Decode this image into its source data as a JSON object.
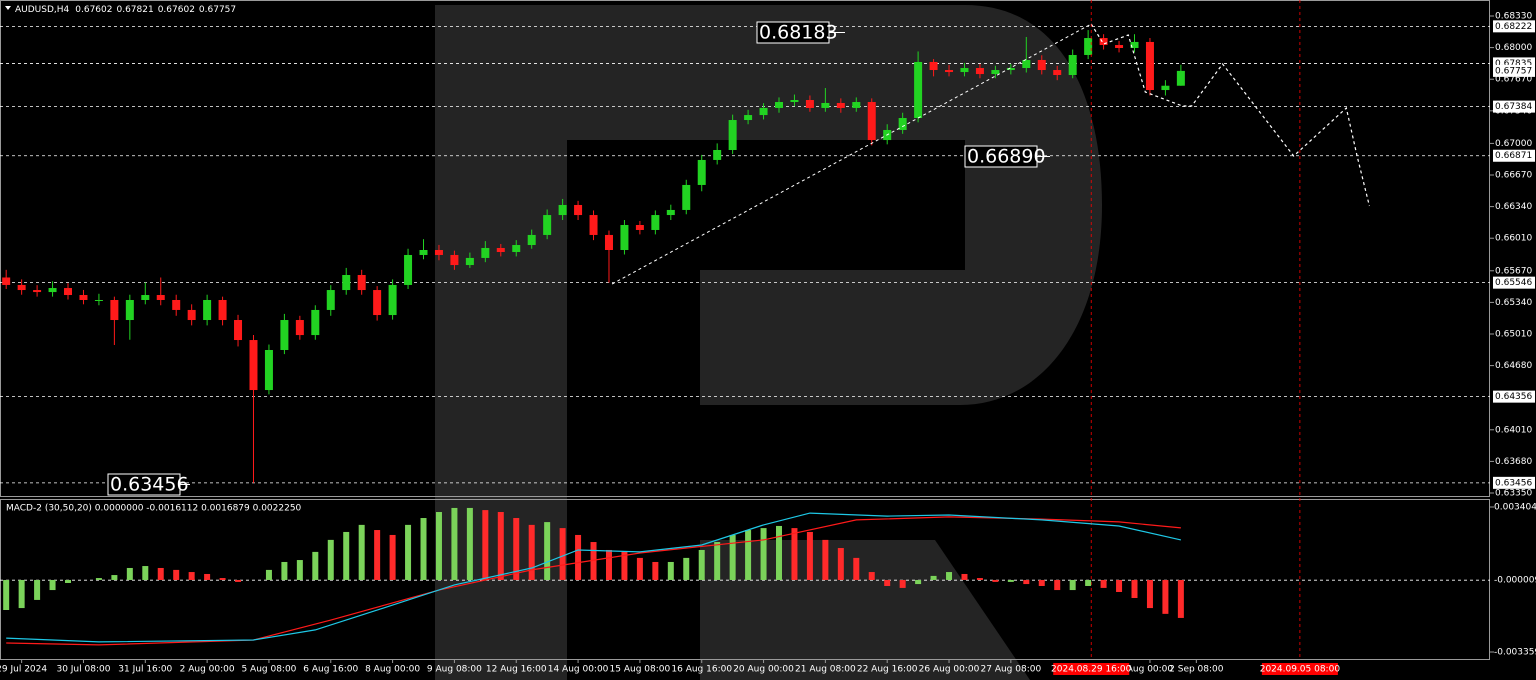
{
  "chart_data": [
    {
      "type": "candlestick",
      "title": "AUDUSD,H4",
      "open": [
        0.656,
        0.65522,
        0.65469,
        0.65448,
        0.6549,
        0.65417,
        0.65365,
        0.65365,
        0.65156,
        0.65365,
        0.65417,
        0.65365,
        0.65261,
        0.65156,
        0.65365,
        0.65156,
        0.64947,
        0.64425,
        0.64843,
        0.65156,
        0.64999,
        0.65261,
        0.65469,
        0.65626,
        0.65469,
        0.65208,
        0.65522,
        0.65835,
        0.65887,
        0.65835,
        0.6573,
        0.65804,
        0.65908,
        0.65866,
        0.65939,
        0.66044,
        0.66252,
        0.66357,
        0.66252,
        0.66044,
        0.65887,
        0.66148,
        0.66096,
        0.66252,
        0.66305,
        0.66566,
        0.66827,
        0.66931,
        0.67244,
        0.67296,
        0.6737,
        0.67432,
        0.67453,
        0.6737,
        0.67422,
        0.6737,
        0.67432,
        0.67035,
        0.6714,
        0.67265,
        0.6785,
        0.67766,
        0.67745,
        0.67787,
        0.67724,
        0.67766,
        0.67787,
        0.67871,
        0.67766,
        0.67714,
        0.67923,
        0.681,
        0.68027,
        0.67996,
        0.68059,
        0.67557,
        0.67602
      ],
      "high": [
        0.6568,
        0.6558,
        0.6552,
        0.6556,
        0.6554,
        0.6547,
        0.6543,
        0.654,
        0.6542,
        0.65546,
        0.656,
        0.6542,
        0.6532,
        0.6542,
        0.654,
        0.6521,
        0.65,
        0.649,
        0.6522,
        0.652,
        0.6531,
        0.6552,
        0.657,
        0.6568,
        0.6551,
        0.6558,
        0.659,
        0.66,
        0.6594,
        0.6588,
        0.6586,
        0.6598,
        0.6595,
        0.6599,
        0.661,
        0.6631,
        0.6642,
        0.664,
        0.663,
        0.6609,
        0.662,
        0.6619,
        0.663,
        0.6636,
        0.6662,
        0.6688,
        0.67,
        0.673,
        0.6735,
        0.6742,
        0.6748,
        0.6751,
        0.675,
        0.67578,
        0.6747,
        0.6748,
        0.6747,
        0.672,
        0.6732,
        0.6796,
        0.6788,
        0.6782,
        0.6784,
        0.6783,
        0.6781,
        0.6783,
        0.68111,
        0.6792,
        0.6781,
        0.6798,
        0.68183,
        0.6814,
        0.6807,
        0.6814,
        0.681,
        0.6766,
        0.67821
      ],
      "low": [
        0.6548,
        0.6542,
        0.654,
        0.654,
        0.6537,
        0.6532,
        0.6531,
        0.64895,
        0.6495,
        0.6532,
        0.6531,
        0.652,
        0.651,
        0.651,
        0.651,
        0.6488,
        0.63456,
        0.6438,
        0.648,
        0.6495,
        0.6495,
        0.652,
        0.6542,
        0.6542,
        0.6515,
        0.6516,
        0.6548,
        0.6579,
        0.6578,
        0.6568,
        0.657,
        0.6576,
        0.6582,
        0.6582,
        0.659,
        0.66,
        0.662,
        0.662,
        0.6599,
        0.65546,
        0.6584,
        0.6605,
        0.6605,
        0.662,
        0.6626,
        0.665,
        0.6678,
        0.6689,
        0.672,
        0.6725,
        0.6732,
        0.6739,
        0.6733,
        0.6733,
        0.6732,
        0.6733,
        0.6698,
        0.6699,
        0.671,
        0.6722,
        0.677,
        0.677,
        0.677,
        0.6768,
        0.6768,
        0.6772,
        0.6774,
        0.6772,
        0.6766,
        0.6768,
        0.6788,
        0.6798,
        0.6795,
        0.6795,
        0.675,
        0.675,
        0.67602
      ],
      "close": [
        0.65522,
        0.65469,
        0.65448,
        0.6549,
        0.65417,
        0.65365,
        0.65365,
        0.65156,
        0.65365,
        0.65417,
        0.65365,
        0.65261,
        0.65156,
        0.65365,
        0.65156,
        0.64947,
        0.64425,
        0.64843,
        0.65156,
        0.64999,
        0.65261,
        0.65469,
        0.65626,
        0.65469,
        0.65208,
        0.65522,
        0.65835,
        0.65887,
        0.65835,
        0.6573,
        0.65804,
        0.65908,
        0.65866,
        0.65939,
        0.66044,
        0.66252,
        0.66357,
        0.66252,
        0.66044,
        0.65887,
        0.66148,
        0.66096,
        0.66252,
        0.66305,
        0.66566,
        0.66827,
        0.66931,
        0.67244,
        0.67296,
        0.6737,
        0.67432,
        0.67453,
        0.6737,
        0.67422,
        0.6737,
        0.67432,
        0.67035,
        0.6714,
        0.67265,
        0.6785,
        0.67766,
        0.67745,
        0.67787,
        0.67724,
        0.67766,
        0.67787,
        0.67871,
        0.67766,
        0.67714,
        0.67923,
        0.681,
        0.68027,
        0.67996,
        0.68059,
        0.67557,
        0.67602,
        0.67757
      ],
      "up_color": "#22d322",
      "down_color": "#ff1a1a",
      "xlim": [
        -0.4,
        96
      ],
      "xticks": [
        {
          "value": 1,
          "label": "29 Jul 2024"
        },
        {
          "value": 5,
          "label": "30 Jul 08:00"
        },
        {
          "value": 9,
          "label": "31 Jul 16:00"
        },
        {
          "value": 13,
          "label": "2 Aug 00:00"
        },
        {
          "value": 17,
          "label": "5 Aug 08:00"
        },
        {
          "value": 21,
          "label": "6 Aug 16:00"
        },
        {
          "value": 25,
          "label": "8 Aug 00:00"
        },
        {
          "value": 29,
          "label": "9 Aug 08:00"
        },
        {
          "value": 33,
          "label": "12 Aug 16:00"
        },
        {
          "value": 37,
          "label": "14 Aug 00:00"
        },
        {
          "value": 41,
          "label": "15 Aug 08:00"
        },
        {
          "value": 45,
          "label": "16 Aug 16:00"
        },
        {
          "value": 49,
          "label": "20 Aug 00:00"
        },
        {
          "value": 53,
          "label": "21 Aug 08:00"
        },
        {
          "value": 57,
          "label": "22 Aug 16:00"
        },
        {
          "value": 61,
          "label": "26 Aug 00:00"
        },
        {
          "value": 65,
          "label": "27 Aug 08:00"
        },
        {
          "value": 74,
          "label": "Aug 00:00"
        },
        {
          "value": 77,
          "label": "2 Sep 08:00"
        }
      ],
      "ylim": [
        0.6335,
        0.6833
      ],
      "yticks": [
        {
          "value": 0.6833,
          "label": "0.68330"
        },
        {
          "value": 0.68,
          "label": "0.68000"
        },
        {
          "value": 0.6767,
          "label": "0.67670"
        },
        {
          "value": 0.6734,
          "label": "0.67340"
        },
        {
          "value": 0.67,
          "label": "0.67000"
        },
        {
          "value": 0.6667,
          "label": "0.66670"
        },
        {
          "value": 0.6634,
          "label": "0.66340"
        },
        {
          "value": 0.6601,
          "label": "0.66010"
        },
        {
          "value": 0.6567,
          "label": "0.65670"
        },
        {
          "value": 0.6534,
          "label": "0.65340"
        },
        {
          "value": 0.6501,
          "label": "0.65010"
        },
        {
          "value": 0.6468,
          "label": "0.64680"
        },
        {
          "value": 0.6401,
          "label": "0.64010"
        },
        {
          "value": 0.6368,
          "label": "0.63680"
        },
        {
          "value": 0.6335,
          "label": "0.63350"
        }
      ],
      "levels": {
        "values": [
          0.68222,
          0.67835,
          0.67384,
          0.66871,
          0.65546,
          0.64356,
          0.63456
        ],
        "color": "#ffffff"
      },
      "trendline": {
        "x": [
          39.2,
          54.6,
          70.2
        ],
        "values": [
          0.65532,
          0.66879,
          0.68246
        ],
        "color": "#ffffff"
      },
      "forecast": {
        "x": [
          70.2,
          71,
          72.6,
          73.7,
          76.1,
          76.7,
          78.7,
          80.9,
          83.3,
          86.7,
          87.4,
          88.2
        ],
        "values": [
          0.68246,
          0.68038,
          0.68132,
          0.67537,
          0.6739,
          0.6739,
          0.67829,
          0.6737,
          0.66868,
          0.6737,
          0.66868,
          0.66346
        ],
        "color": "#ffffff"
      },
      "vlines": {
        "x": [
          70.2,
          83.7
        ],
        "labels": [
          "2024.08.29 16:00",
          "2024.09.05 08:00"
        ],
        "color": "#ff0000"
      },
      "annotations": [
        "0.68183",
        "0.66890",
        "0.63456"
      ]
    },
    {
      "type": "macd",
      "title": "MACD-2 (30,50,20) 0.0000000 -0.0016112 0.0016879 0.0022250",
      "histogram": {
        "values": [
          -0.0014,
          -0.00131,
          -0.00093,
          -0.00047,
          -0.00014,
          0,
          9e-05,
          0.00023,
          0.00056,
          0.00065,
          0.00056,
          0.00047,
          0.00037,
          0.00028,
          9e-05,
          -9e-05,
          0,
          0.00047,
          0.00084,
          0.00093,
          0.00131,
          0.00187,
          0.00224,
          0.00257,
          0.00233,
          0.0021,
          0.00257,
          0.00289,
          0.00317,
          0.00336,
          0.00336,
          0.00326,
          0.00317,
          0.00289,
          0.00257,
          0.0027,
          0.00242,
          0.0021,
          0.00177,
          0.0014,
          0.00131,
          0.00103,
          0.00084,
          0.00084,
          0.00103,
          0.0014,
          0.00177,
          0.0021,
          0.00233,
          0.00242,
          0.00252,
          0.00242,
          0.00224,
          0.00187,
          0.00149,
          0.00103,
          0.00037,
          -0.00028,
          -0.00037,
          -0.00019,
          0.00019,
          0.00037,
          0.00028,
          9e-05,
          -9e-05,
          -9e-05,
          -0.00019,
          -0.00028,
          -0.00047,
          -0.00047,
          -0.00028,
          -0.00037,
          -0.00056,
          -0.00084,
          -0.00131,
          -0.00158,
          -0.00177
        ],
        "up_color": "#7bd35a",
        "down_color": "#ff2a2a"
      },
      "macd": {
        "x": [
          0,
          6,
          16,
          20,
          25,
          29,
          34,
          37,
          41,
          45,
          49,
          52,
          57,
          61,
          67,
          72,
          76
        ],
        "values": [
          -0.00271,
          -0.00289,
          -0.0028,
          -0.00233,
          -0.00117,
          -0.00023,
          0.00056,
          0.0014,
          0.00131,
          0.00163,
          0.00257,
          0.00312,
          0.00298,
          0.00303,
          0.0028,
          0.00252,
          0.00187
        ],
        "color": "#1ec8e6"
      },
      "signal": {
        "x": [
          0,
          6,
          16,
          21,
          28,
          34,
          41,
          49,
          55,
          61,
          67,
          72,
          76
        ],
        "values": [
          -0.00294,
          -0.00303,
          -0.0028,
          -0.00187,
          -0.00047,
          0.00047,
          0.00126,
          0.00187,
          0.0028,
          0.00294,
          0.00284,
          0.00271,
          0.00243
        ],
        "color": "#ff1a1a"
      },
      "ylim": [
        -0.003359,
        0.003404
      ],
      "yticks": [
        {
          "value": 0.003404,
          "label": "0.0034040"
        },
        {
          "value": -9e-06,
          "label": "-0.000009"
        },
        {
          "value": -0.003359,
          "label": "-0.003359"
        }
      ]
    }
  ]
}
